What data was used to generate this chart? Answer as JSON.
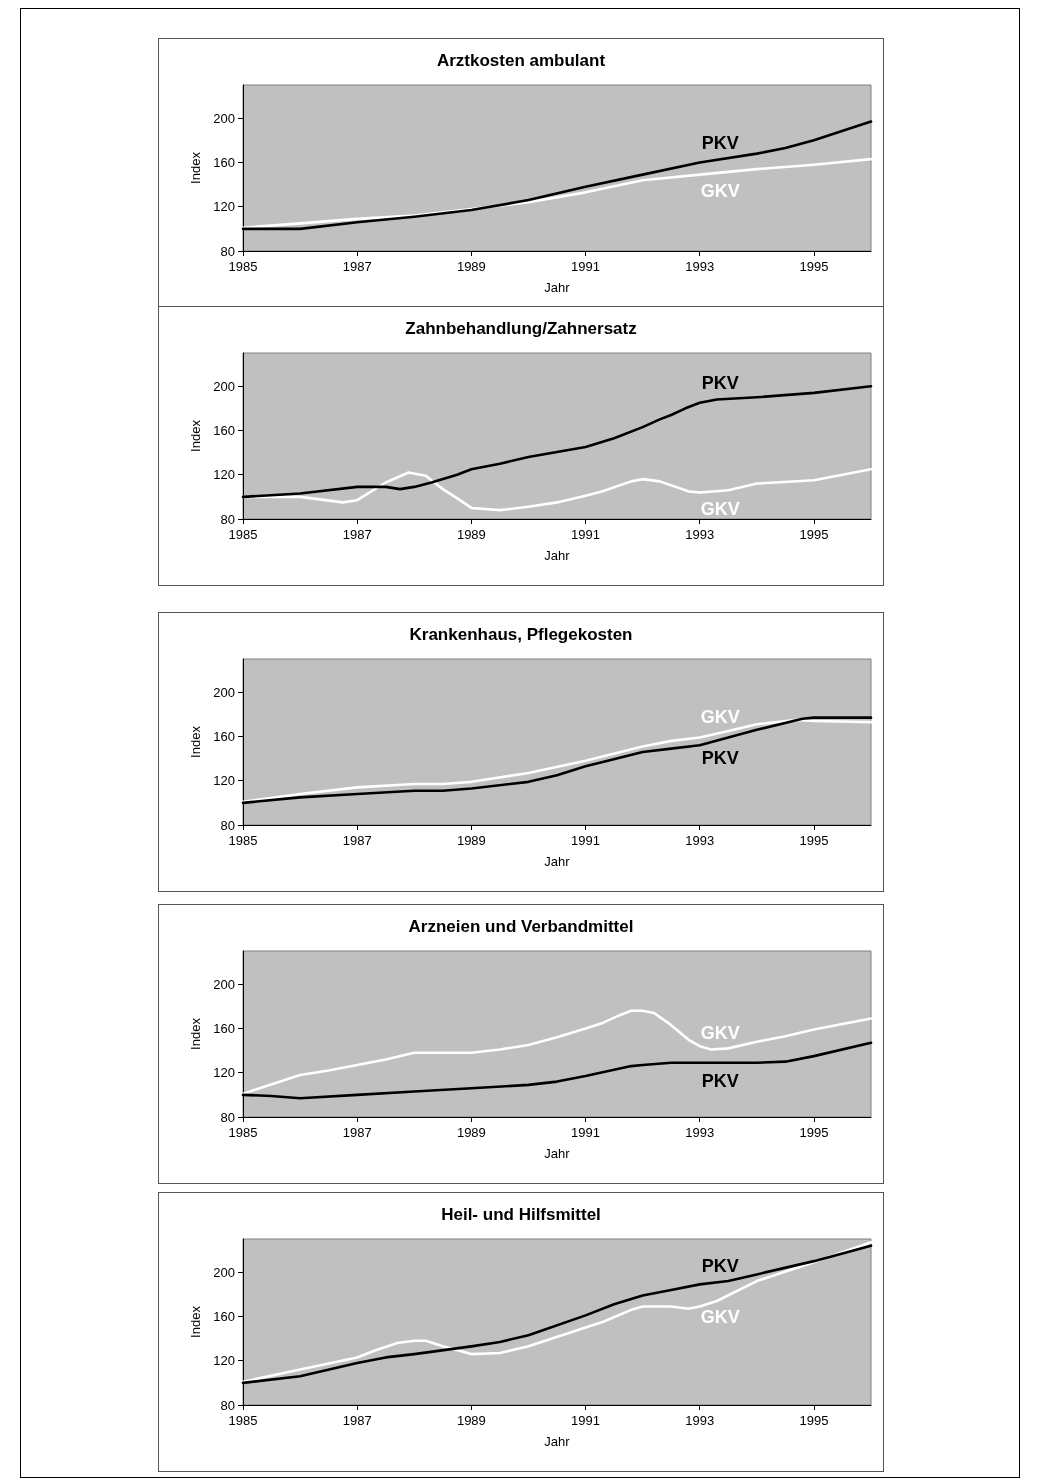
{
  "chart_data": [
    {
      "type": "line",
      "title": "Arztkosten ambulant",
      "xlabel": "Jahr",
      "ylabel": "Index",
      "xlim": [
        1985,
        1996
      ],
      "xticks": [
        1985,
        1987,
        1989,
        1991,
        1993,
        1995
      ],
      "ylim": [
        80,
        230
      ],
      "yticks": [
        80,
        120,
        160,
        200
      ],
      "series": [
        {
          "name": "GKV",
          "color": "#ffffff",
          "x": [
            1985,
            1986,
            1987,
            1988,
            1989,
            1990,
            1991,
            1992,
            1993,
            1994,
            1995,
            1996
          ],
          "values": [
            101,
            105,
            109,
            112,
            118,
            124,
            133,
            144,
            149,
            154,
            158,
            163
          ]
        },
        {
          "name": "PKV",
          "color": "#000000",
          "x": [
            1985,
            1986,
            1987,
            1988,
            1989,
            1990,
            1991,
            1992,
            1993,
            1994,
            1994.5,
            1995,
            1996
          ],
          "values": [
            100,
            100,
            106,
            111,
            117,
            126,
            138,
            149,
            160,
            168,
            173,
            180,
            197
          ]
        }
      ]
    },
    {
      "type": "line",
      "title": "Zahnbehandlung/Zahnersatz",
      "xlabel": "Jahr",
      "ylabel": "Index",
      "xlim": [
        1985,
        1996
      ],
      "xticks": [
        1985,
        1987,
        1989,
        1991,
        1993,
        1995
      ],
      "ylim": [
        80,
        230
      ],
      "yticks": [
        80,
        120,
        160,
        200
      ],
      "series": [
        {
          "name": "GKV",
          "color": "#ffffff",
          "x": [
            1985,
            1986,
            1986.75,
            1987,
            1987.5,
            1987.9,
            1988.2,
            1988.5,
            1988.8,
            1989,
            1989.5,
            1990,
            1990.5,
            1991,
            1991.3,
            1991.8,
            1992,
            1992.3,
            1992.8,
            1993,
            1993.5,
            1994,
            1995,
            1996
          ],
          "values": [
            100,
            100,
            95,
            97,
            113,
            122,
            119,
            107,
            97,
            90,
            88,
            91,
            95,
            101,
            105,
            114,
            116,
            114,
            105,
            104,
            106,
            112,
            115,
            125
          ]
        },
        {
          "name": "PKV",
          "color": "#000000",
          "x": [
            1985,
            1986,
            1987,
            1987.5,
            1987.75,
            1988,
            1988.3,
            1988.75,
            1989,
            1989.5,
            1990,
            1991,
            1991.5,
            1992,
            1992.3,
            1992.5,
            1992.75,
            1993,
            1993.3,
            1994,
            1995,
            1996
          ],
          "values": [
            100,
            103,
            109,
            109,
            107,
            109,
            113,
            120,
            125,
            130,
            136,
            145,
            153,
            163,
            170,
            174,
            180,
            185,
            188,
            190,
            194,
            200
          ]
        }
      ]
    },
    {
      "type": "line",
      "title": "Krankenhaus, Pflegekosten",
      "xlabel": "Jahr",
      "ylabel": "Index",
      "xlim": [
        1985,
        1996
      ],
      "xticks": [
        1985,
        1987,
        1989,
        1991,
        1993,
        1995
      ],
      "ylim": [
        80,
        230
      ],
      "yticks": [
        80,
        120,
        160,
        200
      ],
      "series": [
        {
          "name": "GKV",
          "color": "#ffffff",
          "x": [
            1985,
            1986,
            1987,
            1988,
            1988.5,
            1989,
            1990,
            1991,
            1992,
            1992.5,
            1993,
            1993.5,
            1994,
            1994.7,
            1995,
            1996
          ],
          "values": [
            101,
            108,
            114,
            117,
            117,
            119,
            127,
            138,
            151,
            156,
            159,
            165,
            171,
            175,
            174,
            173
          ]
        },
        {
          "name": "PKV",
          "color": "#000000",
          "x": [
            1985,
            1986,
            1987,
            1988,
            1988.5,
            1989,
            1990,
            1990.5,
            1991,
            1992,
            1992.5,
            1993,
            1993.5,
            1994,
            1994.8,
            1995,
            1996
          ],
          "values": [
            100,
            105,
            108,
            111,
            111,
            113,
            119,
            125,
            133,
            146,
            149,
            152,
            159,
            166,
            176,
            177,
            177
          ]
        }
      ]
    },
    {
      "type": "line",
      "title": "Arzneien und Verbandmittel",
      "xlabel": "Jahr",
      "ylabel": "Index",
      "xlim": [
        1985,
        1996
      ],
      "xticks": [
        1985,
        1987,
        1989,
        1991,
        1993,
        1995
      ],
      "ylim": [
        80,
        230
      ],
      "yticks": [
        80,
        120,
        160,
        200
      ],
      "series": [
        {
          "name": "GKV",
          "color": "#ffffff",
          "x": [
            1985,
            1986,
            1986.5,
            1987,
            1987.5,
            1988,
            1989,
            1989.5,
            1990,
            1990.5,
            1991,
            1991.3,
            1991.6,
            1991.8,
            1992,
            1992.2,
            1992.5,
            1992.8,
            1993,
            1993.2,
            1993.5,
            1994,
            1994.5,
            1995,
            1996
          ],
          "values": [
            101,
            118,
            122,
            127,
            132,
            138,
            138,
            141,
            145,
            152,
            160,
            165,
            172,
            176,
            176,
            174,
            163,
            150,
            144,
            141,
            142,
            148,
            153,
            159,
            169
          ]
        },
        {
          "name": "PKV",
          "color": "#000000",
          "x": [
            1985,
            1985.5,
            1986,
            1987,
            1988,
            1989,
            1990,
            1990.5,
            1991,
            1991.8,
            1992,
            1992.5,
            1993,
            1994,
            1994.5,
            1995,
            1996
          ],
          "values": [
            100,
            99,
            97,
            100,
            103,
            106,
            109,
            112,
            117,
            126,
            127,
            129,
            129,
            129,
            130,
            135,
            147
          ]
        }
      ]
    },
    {
      "type": "line",
      "title": "Heil- und Hilfsmittel",
      "xlabel": "Jahr",
      "ylabel": "Index",
      "xlim": [
        1985,
        1996
      ],
      "xticks": [
        1985,
        1987,
        1989,
        1991,
        1993,
        1995
      ],
      "ylim": [
        80,
        230
      ],
      "yticks": [
        80,
        120,
        160,
        200
      ],
      "series": [
        {
          "name": "GKV",
          "color": "#ffffff",
          "x": [
            1985,
            1986,
            1987,
            1987.3,
            1987.7,
            1988,
            1988.2,
            1988.5,
            1989,
            1989.5,
            1990,
            1991,
            1991.3,
            1991.8,
            1992,
            1992.5,
            1992.8,
            1993,
            1993.3,
            1994,
            1995,
            1996
          ],
          "values": [
            101,
            112,
            123,
            129,
            136,
            138,
            138,
            133,
            126,
            127,
            133,
            150,
            155,
            166,
            169,
            169,
            167,
            169,
            174,
            192,
            209,
            227
          ]
        },
        {
          "name": "PKV",
          "color": "#000000",
          "x": [
            1985,
            1986,
            1987,
            1987.5,
            1988,
            1989,
            1989.5,
            1990,
            1991,
            1991.5,
            1992,
            1992.5,
            1993,
            1993.5,
            1994,
            1995,
            1996
          ],
          "values": [
            100,
            106,
            118,
            123,
            126,
            133,
            137,
            143,
            161,
            171,
            179,
            184,
            189,
            192,
            198,
            210,
            224
          ]
        }
      ]
    }
  ]
}
